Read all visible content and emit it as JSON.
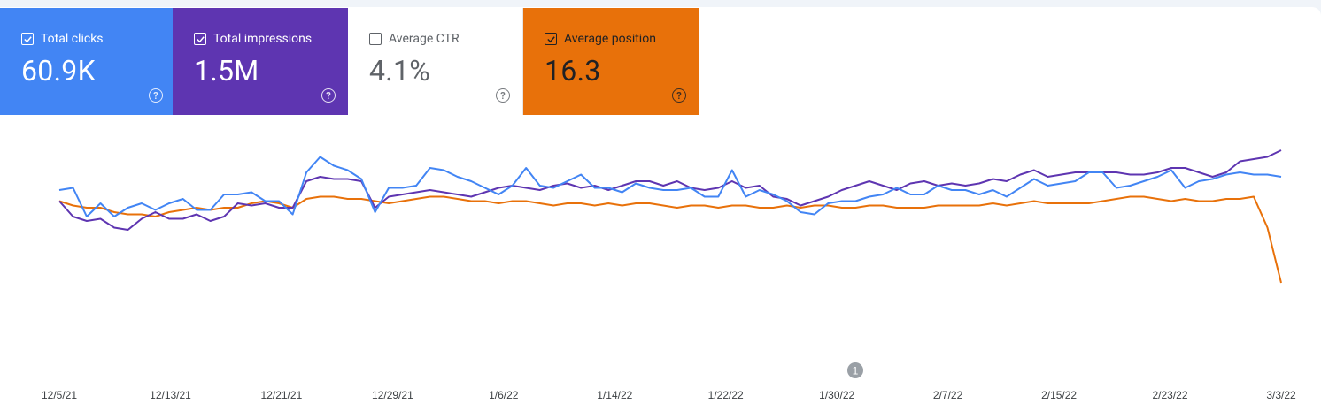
{
  "metrics": {
    "clicks": {
      "label": "Total clicks",
      "value": "60.9K",
      "checked": true,
      "color": "#4285f4"
    },
    "impressions": {
      "label": "Total impressions",
      "value": "1.5M",
      "checked": true,
      "color": "#5e35b1"
    },
    "ctr": {
      "label": "Average CTR",
      "value": "4.1%",
      "checked": false,
      "color": "#ffffff"
    },
    "position": {
      "label": "Average position",
      "value": "16.3",
      "checked": true,
      "color": "#e8710a"
    }
  },
  "icons": {
    "help": "help-circle-icon",
    "check": "check-icon"
  },
  "annotation": {
    "label": "1"
  },
  "chart_data": {
    "type": "line",
    "title": "",
    "xlabel": "",
    "ylabel": "",
    "grid": false,
    "x_tick_labels": [
      "12/5/21",
      "12/13/21",
      "12/21/21",
      "12/29/21",
      "1/6/22",
      "1/14/22",
      "1/22/22",
      "1/30/22",
      "2/7/22",
      "2/15/22",
      "2/23/22",
      "3/3/22"
    ],
    "x_range": [
      "12/5/21",
      "3/3/22"
    ],
    "normalized_y": true,
    "series": [
      {
        "color": "#4285f4",
        "values": [
          0.72,
          0.73,
          0.6,
          0.66,
          0.6,
          0.64,
          0.66,
          0.63,
          0.66,
          0.68,
          0.63,
          0.63,
          0.7,
          0.7,
          0.71,
          0.67,
          0.67,
          0.61,
          0.8,
          0.87,
          0.83,
          0.81,
          0.77,
          0.62,
          0.73,
          0.73,
          0.74,
          0.82,
          0.81,
          0.78,
          0.76,
          0.73,
          0.7,
          0.74,
          0.82,
          0.74,
          0.73,
          0.76,
          0.79,
          0.73,
          0.73,
          0.71,
          0.75,
          0.73,
          0.72,
          0.72,
          0.73,
          0.69,
          0.69,
          0.81,
          0.69,
          0.72,
          0.7,
          0.67,
          0.62,
          0.61,
          0.66,
          0.67,
          0.67,
          0.69,
          0.7,
          0.73,
          0.7,
          0.7,
          0.74,
          0.72,
          0.72,
          0.7,
          0.72,
          0.69,
          0.73,
          0.77,
          0.74,
          0.75,
          0.76,
          0.8,
          0.8,
          0.73,
          0.74,
          0.76,
          0.78,
          0.81,
          0.73,
          0.76,
          0.77,
          0.79,
          0.8,
          0.79,
          0.79,
          0.78
        ]
      },
      {
        "color": "#5e35b1",
        "values": [
          0.67,
          0.6,
          0.58,
          0.59,
          0.55,
          0.54,
          0.59,
          0.62,
          0.59,
          0.59,
          0.61,
          0.58,
          0.6,
          0.66,
          0.65,
          0.66,
          0.64,
          0.64,
          0.76,
          0.78,
          0.77,
          0.77,
          0.76,
          0.64,
          0.69,
          0.7,
          0.71,
          0.72,
          0.71,
          0.7,
          0.69,
          0.71,
          0.73,
          0.74,
          0.73,
          0.72,
          0.74,
          0.75,
          0.73,
          0.74,
          0.72,
          0.74,
          0.76,
          0.76,
          0.74,
          0.76,
          0.73,
          0.72,
          0.73,
          0.76,
          0.73,
          0.74,
          0.69,
          0.68,
          0.65,
          0.67,
          0.69,
          0.72,
          0.74,
          0.76,
          0.74,
          0.72,
          0.75,
          0.76,
          0.74,
          0.75,
          0.74,
          0.75,
          0.77,
          0.76,
          0.79,
          0.81,
          0.78,
          0.79,
          0.8,
          0.8,
          0.8,
          0.8,
          0.79,
          0.79,
          0.8,
          0.82,
          0.82,
          0.8,
          0.78,
          0.8,
          0.85,
          0.86,
          0.87,
          0.9
        ]
      },
      {
        "color": "#e8710a",
        "values": [
          0.67,
          0.65,
          0.64,
          0.64,
          0.62,
          0.61,
          0.61,
          0.6,
          0.62,
          0.63,
          0.64,
          0.63,
          0.64,
          0.64,
          0.66,
          0.67,
          0.66,
          0.64,
          0.68,
          0.69,
          0.69,
          0.68,
          0.68,
          0.67,
          0.66,
          0.67,
          0.68,
          0.69,
          0.69,
          0.68,
          0.67,
          0.67,
          0.66,
          0.67,
          0.67,
          0.66,
          0.65,
          0.66,
          0.66,
          0.65,
          0.66,
          0.65,
          0.66,
          0.66,
          0.65,
          0.64,
          0.65,
          0.65,
          0.64,
          0.65,
          0.65,
          0.64,
          0.64,
          0.65,
          0.64,
          0.65,
          0.65,
          0.64,
          0.64,
          0.65,
          0.65,
          0.64,
          0.64,
          0.64,
          0.65,
          0.65,
          0.65,
          0.65,
          0.66,
          0.65,
          0.66,
          0.67,
          0.66,
          0.66,
          0.66,
          0.66,
          0.67,
          0.68,
          0.69,
          0.69,
          0.68,
          0.67,
          0.68,
          0.67,
          0.67,
          0.68,
          0.68,
          0.69,
          0.55,
          0.3
        ]
      }
    ]
  }
}
